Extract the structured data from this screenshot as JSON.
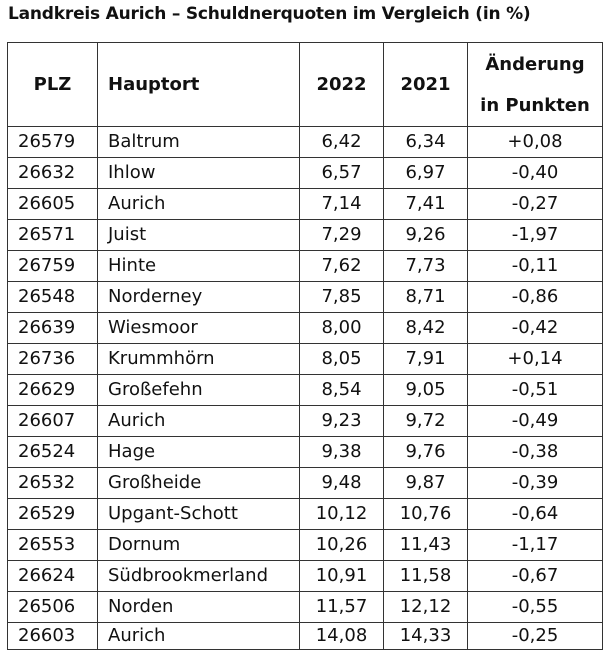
{
  "chart_data": {
    "type": "table",
    "title": "Landkreis Aurich – Schuldnerquoten im Vergleich (in %)",
    "columns": {
      "plz": "PLZ",
      "hauptort": "Hauptort",
      "y2022": "2022",
      "y2021": "2021",
      "change_line1": "Änderung",
      "change_line2": "in Punkten"
    },
    "rows": [
      {
        "plz": "26579",
        "hauptort": "Baltrum",
        "y2022": "6,42",
        "y2021": "6,34",
        "change": "+0,08"
      },
      {
        "plz": "26632",
        "hauptort": "Ihlow",
        "y2022": "6,57",
        "y2021": "6,97",
        "change": "-0,40"
      },
      {
        "plz": "26605",
        "hauptort": "Aurich",
        "y2022": "7,14",
        "y2021": "7,41",
        "change": "-0,27"
      },
      {
        "plz": "26571",
        "hauptort": "Juist",
        "y2022": "7,29",
        "y2021": "9,26",
        "change": "-1,97"
      },
      {
        "plz": "26759",
        "hauptort": "Hinte",
        "y2022": "7,62",
        "y2021": "7,73",
        "change": "-0,11"
      },
      {
        "plz": "26548",
        "hauptort": "Norderney",
        "y2022": "7,85",
        "y2021": "8,71",
        "change": "-0,86"
      },
      {
        "plz": "26639",
        "hauptort": "Wiesmoor",
        "y2022": "8,00",
        "y2021": "8,42",
        "change": "-0,42"
      },
      {
        "plz": "26736",
        "hauptort": "Krummhörn",
        "y2022": "8,05",
        "y2021": "7,91",
        "change": "+0,14"
      },
      {
        "plz": "26629",
        "hauptort": "Großefehn",
        "y2022": "8,54",
        "y2021": "9,05",
        "change": "-0,51"
      },
      {
        "plz": "26607",
        "hauptort": "Aurich",
        "y2022": "9,23",
        "y2021": "9,72",
        "change": "-0,49"
      },
      {
        "plz": "26524",
        "hauptort": "Hage",
        "y2022": "9,38",
        "y2021": "9,76",
        "change": "-0,38"
      },
      {
        "plz": "26532",
        "hauptort": "Großheide",
        "y2022": "9,48",
        "y2021": "9,87",
        "change": "-0,39"
      },
      {
        "plz": "26529",
        "hauptort": "Upgant-Schott",
        "y2022": "10,12",
        "y2021": "10,76",
        "change": "-0,64"
      },
      {
        "plz": "26553",
        "hauptort": "Dornum",
        "y2022": "10,26",
        "y2021": "11,43",
        "change": "-1,17"
      },
      {
        "plz": "26624",
        "hauptort": "Südbrookmerland",
        "y2022": "10,91",
        "y2021": "11,58",
        "change": "-0,67"
      },
      {
        "plz": "26506",
        "hauptort": "Norden",
        "y2022": "11,57",
        "y2021": "12,12",
        "change": "-0,55"
      },
      {
        "plz": "26603",
        "hauptort": "Aurich",
        "y2022": "14,08",
        "y2021": "14,33",
        "change": "-0,25"
      }
    ]
  }
}
